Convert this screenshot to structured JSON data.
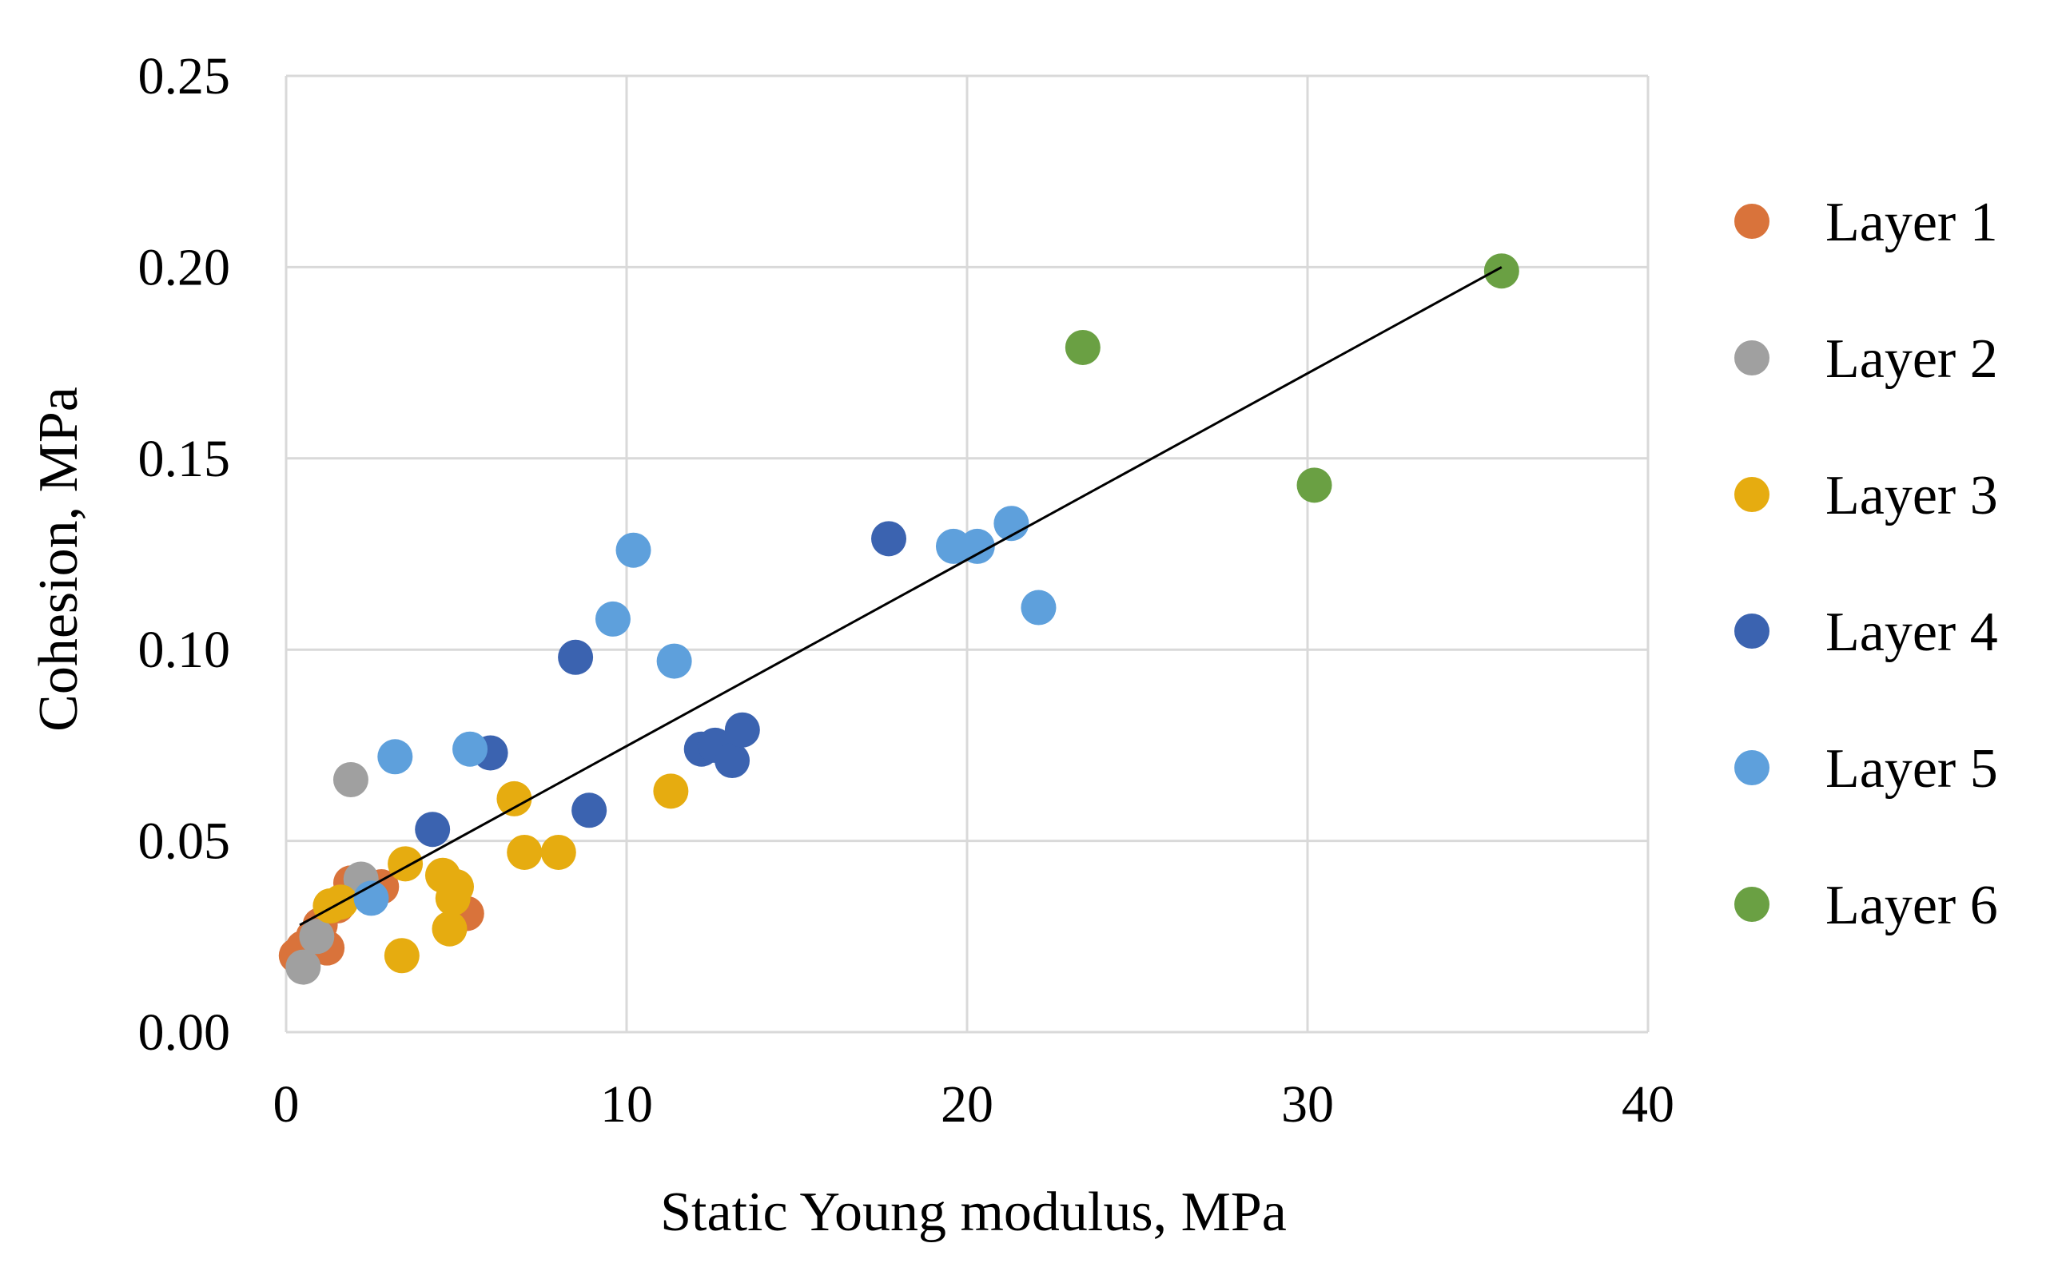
{
  "chart_data": {
    "type": "scatter",
    "title": "",
    "xlabel": "Static Young modulus, MPa",
    "ylabel": "Cohesion, MPa",
    "xlim": [
      0,
      40
    ],
    "ylim": [
      0,
      0.25
    ],
    "x_ticks": [
      0,
      10,
      20,
      30,
      40
    ],
    "x_tick_labels": [
      "0",
      "10",
      "20",
      "30",
      "40"
    ],
    "y_ticks": [
      0,
      0.05,
      0.1,
      0.15,
      0.2,
      0.25
    ],
    "y_tick_labels": [
      "0.00",
      "0.05",
      "0.10",
      "0.15",
      "0.20",
      "0.25"
    ],
    "grid": true,
    "legend_position": "right",
    "series": [
      {
        "name": "Layer 1",
        "color": "#d9733b",
        "points": [
          [
            0.3,
            0.02
          ],
          [
            0.5,
            0.022
          ],
          [
            0.8,
            0.025
          ],
          [
            1.0,
            0.028
          ],
          [
            1.2,
            0.022
          ],
          [
            1.5,
            0.033
          ],
          [
            1.9,
            0.039
          ],
          [
            2.8,
            0.038
          ],
          [
            5.3,
            0.031
          ]
        ]
      },
      {
        "name": "Layer 2",
        "color": "#a0a0a0",
        "points": [
          [
            0.5,
            0.017
          ],
          [
            0.9,
            0.025
          ],
          [
            1.9,
            0.066
          ],
          [
            2.2,
            0.04
          ]
        ]
      },
      {
        "name": "Layer 3",
        "color": "#e6ac10",
        "points": [
          [
            1.3,
            0.033
          ],
          [
            1.6,
            0.034
          ],
          [
            3.4,
            0.02
          ],
          [
            3.5,
            0.044
          ],
          [
            4.6,
            0.041
          ],
          [
            4.8,
            0.027
          ],
          [
            4.9,
            0.035
          ],
          [
            5.0,
            0.038
          ],
          [
            6.7,
            0.061
          ],
          [
            7.0,
            0.047
          ],
          [
            8.0,
            0.047
          ],
          [
            11.3,
            0.063
          ]
        ]
      },
      {
        "name": "Layer 4",
        "color": "#3b63b0",
        "points": [
          [
            4.3,
            0.053
          ],
          [
            6.0,
            0.073
          ],
          [
            8.5,
            0.098
          ],
          [
            8.9,
            0.058
          ],
          [
            12.2,
            0.074
          ],
          [
            12.6,
            0.075
          ],
          [
            13.1,
            0.071
          ],
          [
            13.4,
            0.079
          ],
          [
            17.7,
            0.129
          ]
        ]
      },
      {
        "name": "Layer 5",
        "color": "#5ea0dc",
        "points": [
          [
            2.5,
            0.035
          ],
          [
            3.2,
            0.072
          ],
          [
            5.4,
            0.074
          ],
          [
            9.6,
            0.108
          ],
          [
            10.2,
            0.126
          ],
          [
            11.4,
            0.097
          ],
          [
            19.6,
            0.127
          ],
          [
            20.3,
            0.127
          ],
          [
            21.3,
            0.133
          ],
          [
            22.1,
            0.111
          ]
        ]
      },
      {
        "name": "Layer 6",
        "color": "#6aa043",
        "points": [
          [
            23.4,
            0.179
          ],
          [
            30.2,
            0.143
          ],
          [
            35.7,
            0.199
          ]
        ]
      }
    ],
    "trendline": {
      "type": "linear",
      "color": "#000000",
      "x_start": 0.4,
      "y_start": 0.028,
      "x_end": 35.7,
      "y_end": 0.2
    }
  }
}
